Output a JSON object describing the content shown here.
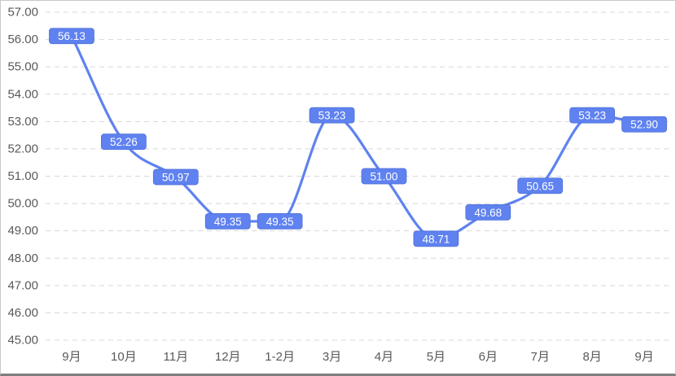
{
  "page": {
    "background": "#FFFFFF"
  },
  "chart_data": {
    "type": "line",
    "title": "",
    "xlabel": "",
    "ylabel": "",
    "smooth": true,
    "grid": "horizontal-dashed",
    "legend_position": "none",
    "categories": [
      "9月",
      "10月",
      "11月",
      "12月",
      "1-2月",
      "3月",
      "4月",
      "5月",
      "6月",
      "7月",
      "8月",
      "9月"
    ],
    "values": [
      56.13,
      52.26,
      50.97,
      49.35,
      49.35,
      53.23,
      51.0,
      48.71,
      49.68,
      50.65,
      53.23,
      52.9
    ],
    "labels": [
      "56.13",
      "52.26",
      "50.97",
      "49.35",
      "49.35",
      "53.23",
      "51.00",
      "48.71",
      "49.68",
      "50.65",
      "53.23",
      "52.90"
    ],
    "ylim": [
      45,
      57
    ],
    "ytick_step": 1,
    "yticks": [
      "57.00",
      "56.00",
      "55.00",
      "54.00",
      "53.00",
      "52.00",
      "51.00",
      "50.00",
      "49.00",
      "48.00",
      "47.00",
      "46.00",
      "45.00"
    ],
    "colors": {
      "line": "#5F82F0",
      "label_fill": "#5F82F0",
      "label_border": "#4C6FD6",
      "label_text": "#FFFFFF",
      "axis_text": "#595959",
      "gridline": "#D8D8D8",
      "frame_border": "#C9C9C9",
      "frame_bottom": "#7E7E7E",
      "background": "#FFFFFF"
    }
  }
}
